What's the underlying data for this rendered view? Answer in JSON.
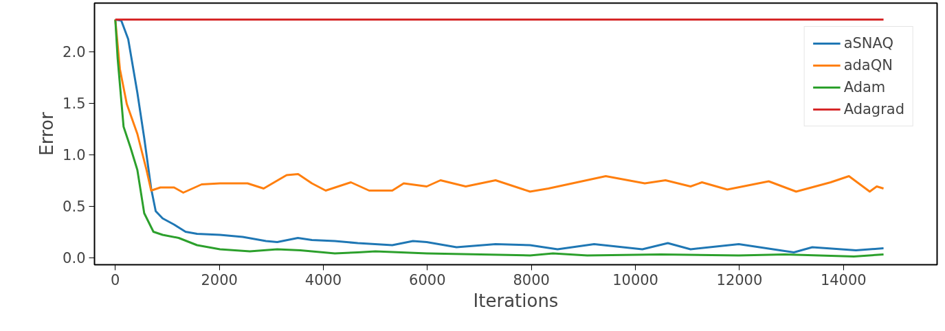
{
  "chart_data": {
    "type": "line",
    "xlabel": "Iterations",
    "ylabel": "Error",
    "xlim": [
      -400,
      15800
    ],
    "ylim": [
      -0.07,
      2.47
    ],
    "xticks": [
      0,
      2000,
      4000,
      6000,
      8000,
      10000,
      12000,
      14000
    ],
    "yticks": [
      {
        "value": 0,
        "label": "0.0"
      },
      0.5,
      {
        "value": 1,
        "label": "1.0"
      },
      1.5,
      {
        "value": 2,
        "label": "2.0"
      }
    ],
    "grid": false,
    "legend": "top right",
    "marker": "none",
    "line_style": "solid",
    "series": [
      {
        "name": "aSNAQ",
        "color": "#1f77b4",
        "x": [
          0,
          115,
          248,
          424,
          556,
          689,
          777,
          910,
          1130,
          1351,
          1572,
          2013,
          2450,
          2897,
          3113,
          3510,
          3780,
          4220,
          4662,
          5325,
          5722,
          5987,
          6560,
          7311,
          7974,
          8503,
          9206,
          10133,
          10623,
          11060,
          11987,
          13046,
          13400,
          14240,
          14770
        ],
        "values": [
          2.31,
          2.3,
          2.12,
          1.6,
          1.16,
          0.67,
          0.45,
          0.38,
          0.32,
          0.25,
          0.23,
          0.22,
          0.2,
          0.16,
          0.15,
          0.19,
          0.17,
          0.16,
          0.14,
          0.12,
          0.16,
          0.15,
          0.1,
          0.13,
          0.12,
          0.08,
          0.13,
          0.08,
          0.14,
          0.08,
          0.13,
          0.05,
          0.1,
          0.07,
          0.09
        ]
      },
      {
        "name": "adaQN",
        "color": "#ff7f0e",
        "x": [
          0,
          88,
          221,
          424,
          600,
          689,
          866,
          1130,
          1307,
          1660,
          2013,
          2543,
          2852,
          3294,
          3515,
          3780,
          4045,
          4530,
          4880,
          5325,
          5545,
          5987,
          6252,
          6737,
          7311,
          7974,
          8327,
          9430,
          10180,
          10578,
          11060,
          11280,
          11767,
          12563,
          13090,
          13752,
          14105,
          14505,
          14640,
          14770
        ],
        "values": [
          2.31,
          1.83,
          1.49,
          1.2,
          0.85,
          0.65,
          0.68,
          0.68,
          0.63,
          0.71,
          0.72,
          0.72,
          0.67,
          0.8,
          0.81,
          0.72,
          0.65,
          0.73,
          0.65,
          0.65,
          0.72,
          0.69,
          0.75,
          0.69,
          0.75,
          0.64,
          0.67,
          0.79,
          0.72,
          0.75,
          0.69,
          0.73,
          0.66,
          0.74,
          0.64,
          0.73,
          0.79,
          0.64,
          0.69,
          0.67
        ]
      },
      {
        "name": "Adam",
        "color": "#2ca02c",
        "x": [
          0,
          44,
          159,
          291,
          424,
          556,
          733,
          910,
          1219,
          1572,
          2013,
          2587,
          3113,
          3558,
          4220,
          4662,
          5000,
          5987,
          7974,
          8415,
          9073,
          10490,
          11987,
          12870,
          14200,
          14770
        ],
        "values": [
          2.31,
          1.94,
          1.27,
          1.07,
          0.85,
          0.43,
          0.25,
          0.22,
          0.19,
          0.12,
          0.08,
          0.06,
          0.08,
          0.07,
          0.04,
          0.05,
          0.06,
          0.04,
          0.02,
          0.04,
          0.02,
          0.03,
          0.02,
          0.03,
          0.01,
          0.03
        ]
      },
      {
        "name": "Adagrad",
        "color": "#d62728",
        "x": [
          0,
          14770
        ],
        "values": [
          2.31,
          2.31
        ]
      }
    ]
  }
}
